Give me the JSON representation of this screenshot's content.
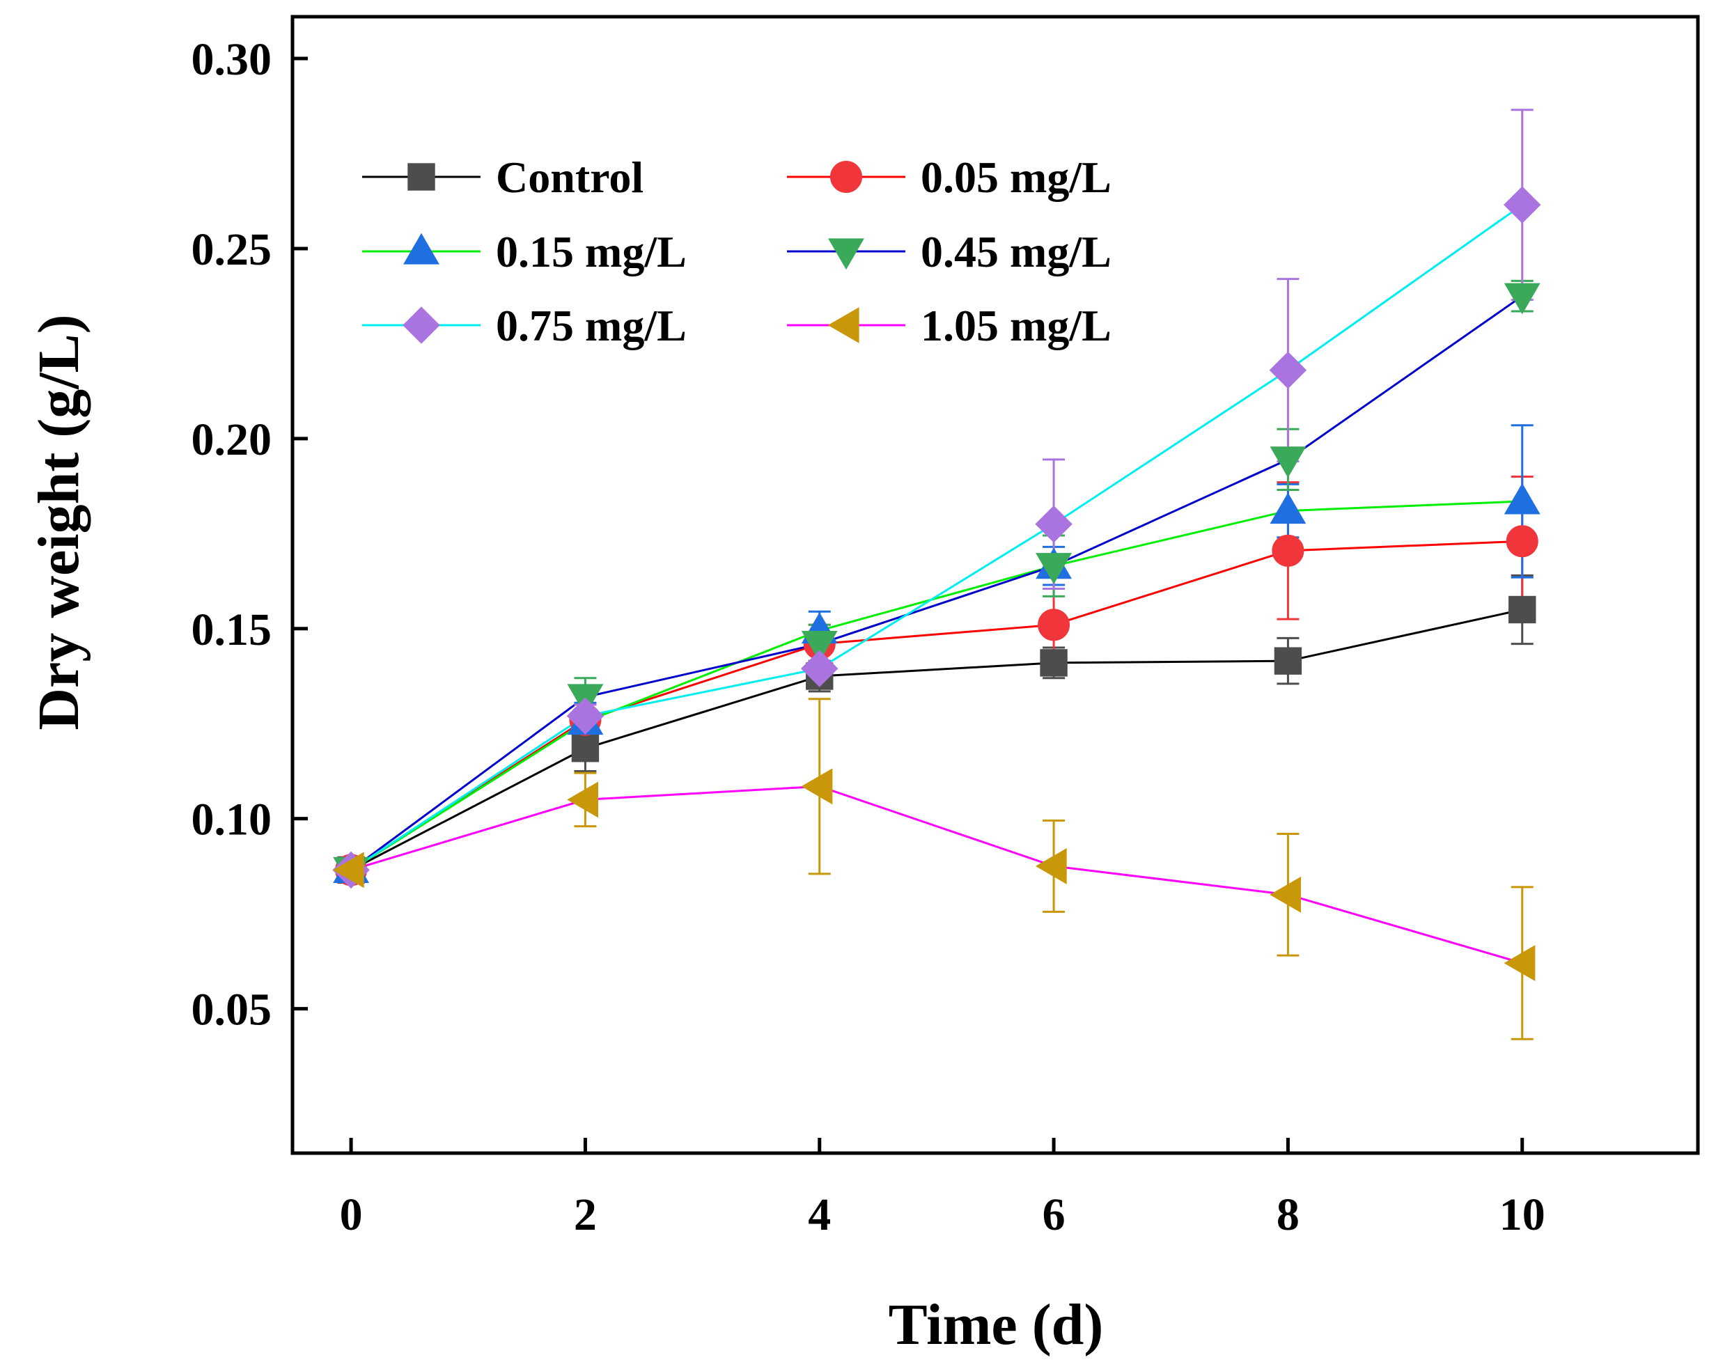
{
  "chart_data": {
    "type": "line",
    "title": "",
    "xlabel": "Time (d)",
    "ylabel": "Dry weight (g/L)",
    "xlim": [
      -0.5,
      11.5
    ],
    "ylim": [
      0.012,
      0.311
    ],
    "x_ticks": [
      0,
      2,
      4,
      6,
      8,
      10
    ],
    "x_tick_labels": [
      "0",
      "2",
      "4",
      "6",
      "8",
      "10"
    ],
    "y_ticks": [
      0.05,
      0.1,
      0.15,
      0.2,
      0.25,
      0.3
    ],
    "y_tick_labels": [
      "0.05",
      "0.10",
      "0.15",
      "0.20",
      "0.25",
      "0.30"
    ],
    "grid": false,
    "legend_position": "top-left",
    "x": [
      0,
      2,
      4,
      6,
      8,
      10
    ],
    "series": [
      {
        "name": "Control",
        "line_color": "#000000",
        "marker": "square",
        "marker_color": "#4d4d4d",
        "values": [
          0.0865,
          0.1185,
          0.1375,
          0.141,
          0.1415,
          0.155
        ],
        "errors": [
          0.001,
          0.006,
          0.004,
          0.004,
          0.006,
          0.009
        ]
      },
      {
        "name": "0.05 mg/L",
        "line_color": "#ff0000",
        "marker": "circle",
        "marker_color": "#f0353b",
        "values": [
          0.0865,
          0.126,
          0.146,
          0.151,
          0.1705,
          0.173
        ],
        "errors": [
          0.001,
          0.004,
          0.005,
          0.013,
          0.018,
          0.017
        ]
      },
      {
        "name": "0.15 mg/L",
        "line_color": "#00ee00",
        "marker": "triangle-up",
        "marker_color": "#1f6fe0",
        "values": [
          0.0865,
          0.1255,
          0.1495,
          0.1665,
          0.181,
          0.1835
        ],
        "errors": [
          0.001,
          0.005,
          0.005,
          0.005,
          0.007,
          0.02
        ]
      },
      {
        "name": "0.45 mg/L",
        "line_color": "#0000cc",
        "marker": "triangle-down",
        "marker_color": "#3aaa5a",
        "values": [
          0.0865,
          0.132,
          0.146,
          0.1665,
          0.1945,
          0.2375
        ],
        "errors": [
          0.001,
          0.005,
          0.005,
          0.008,
          0.008,
          0.004
        ]
      },
      {
        "name": "0.75 mg/L",
        "line_color": "#00eeee",
        "marker": "diamond",
        "marker_color": "#aa74e0",
        "values": [
          0.0865,
          0.127,
          0.1395,
          0.1775,
          0.218,
          0.2615
        ],
        "errors": [
          0.001,
          0.003,
          0.004,
          0.017,
          0.024,
          0.025
        ]
      },
      {
        "name": "1.05 mg/L",
        "line_color": "#ff00ff",
        "marker": "triangle-left",
        "marker_color": "#c9970a",
        "values": [
          0.0865,
          0.105,
          0.1085,
          0.0875,
          0.08,
          0.062
        ],
        "errors": [
          0.001,
          0.007,
          0.023,
          0.012,
          0.016,
          0.02
        ]
      }
    ]
  }
}
